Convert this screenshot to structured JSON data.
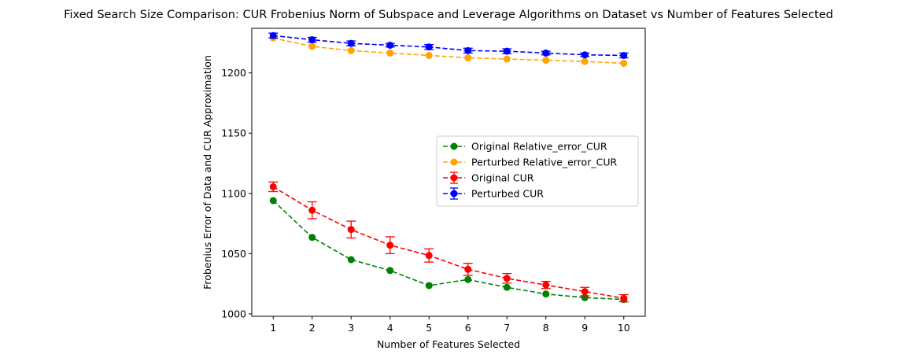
{
  "chart_data": {
    "type": "line",
    "title": "Fixed Search Size Comparison: CUR Frobenius Norm of Subspace and Leverage Algorithms on Dataset vs Number of Features Selected",
    "xlabel": "Number of Features Selected",
    "ylabel": "Frobenius Error of Data and CUR Approximation",
    "xlim": [
      0.45,
      10.55
    ],
    "ylim": [
      998,
      1237
    ],
    "x_ticks": [
      1,
      2,
      3,
      4,
      5,
      6,
      7,
      8,
      9,
      10
    ],
    "y_ticks": [
      1000,
      1050,
      1100,
      1150,
      1200
    ],
    "grid": false,
    "legend_position": "center-right",
    "x": [
      1,
      2,
      3,
      4,
      5,
      6,
      7,
      8,
      9,
      10
    ],
    "series": [
      {
        "name": "Original Relative_error_CUR",
        "color": "#008000",
        "values": [
          1094,
          1063.5,
          1045,
          1036,
          1023.5,
          1028.5,
          1022,
          1016.5,
          1013.5,
          1012
        ],
        "errorbars": false
      },
      {
        "name": "Perturbed Relative_error_CUR",
        "color": "#FFA500",
        "values": [
          1229,
          1222,
          1218.5,
          1216.5,
          1214.5,
          1212.5,
          1211.5,
          1210.5,
          1209.5,
          1208
        ],
        "errorbars": false
      },
      {
        "name": "Original CUR",
        "color": "#FF0000",
        "values": [
          1105.5,
          1086,
          1070,
          1057,
          1048.5,
          1037,
          1029.5,
          1024,
          1018.5,
          1013
        ],
        "errors": [
          4,
          7,
          7,
          7,
          5.5,
          5,
          4,
          3,
          3.5,
          3
        ],
        "errorbars": true
      },
      {
        "name": "Perturbed CUR",
        "color": "#0000FF",
        "values": [
          1231,
          1227.5,
          1224.5,
          1223,
          1221.5,
          1218.5,
          1218,
          1216.5,
          1215,
          1214.5
        ],
        "errors": [
          2,
          2,
          2,
          1.5,
          2,
          2,
          2,
          1.5,
          1.5,
          2
        ],
        "errorbars": true
      }
    ]
  }
}
